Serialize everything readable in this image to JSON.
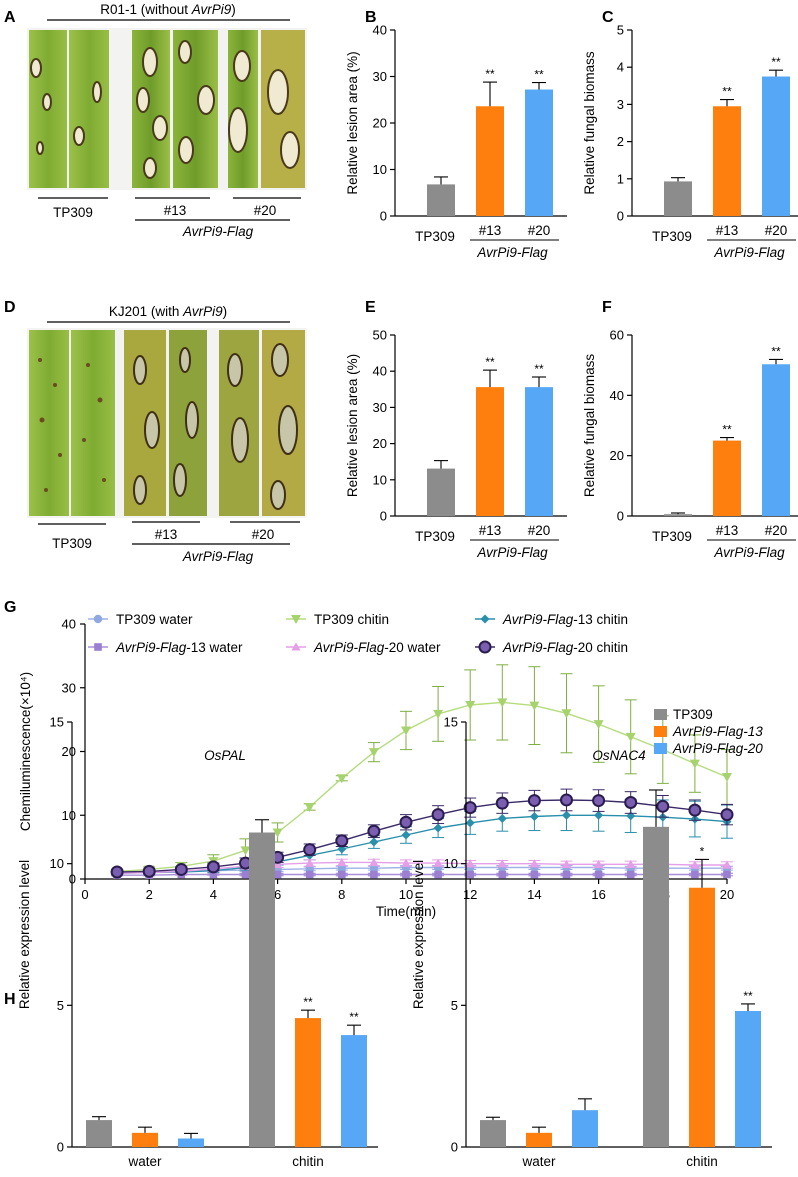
{
  "panels": {
    "A": {
      "letter": "A",
      "strain_pre": "R01-1 (without ",
      "strain_gene": "AvrPi9",
      "strain_post": ")",
      "tp_label": "TP309",
      "line13_label": "#13",
      "line20_label": "#20",
      "group_label": "AvrPi9-Flag"
    },
    "D": {
      "letter": "D",
      "strain_pre": "KJ201 (with ",
      "strain_gene": "AvrPi9",
      "strain_post": ")",
      "tp_label": "TP309",
      "line13_label": "#13",
      "line20_label": "#20",
      "group_label": "AvrPi9-Flag"
    }
  },
  "colors": {
    "tp309": "#8c8c8c",
    "line13": "#ff7f0e",
    "line20": "#56a7f5",
    "tp_water": "#8fa9e0",
    "tp_chitin": "#a7d36e",
    "l13_chitin": "#2a8faa",
    "l13_water": "#9b7fd0",
    "l20_water": "#e59ee8",
    "l20_chitin": "#3b2a66",
    "chitin_err": "#7fae42"
  },
  "chart_data": [
    {
      "id": "B",
      "letter": "B",
      "type": "bar",
      "categories": [
        "TP309",
        "#13",
        "#20"
      ],
      "group_label": "AvrPi9-Flag",
      "values": [
        6.8,
        23.6,
        27.2
      ],
      "errors": [
        1.6,
        5.2,
        1.5
      ],
      "significance": [
        "",
        "**",
        "**"
      ],
      "ylabel": "Relative lesion area (%)",
      "ylim": [
        0,
        40
      ],
      "yticks": [
        0,
        10,
        20,
        30,
        40
      ]
    },
    {
      "id": "C",
      "letter": "C",
      "type": "bar",
      "categories": [
        "TP309",
        "#13",
        "#20"
      ],
      "group_label": "AvrPi9-Flag",
      "values": [
        0.93,
        2.95,
        3.75
      ],
      "errors": [
        0.1,
        0.18,
        0.17
      ],
      "significance": [
        "",
        "**",
        "**"
      ],
      "ylabel": "Relative fungal biomass",
      "ylim": [
        0,
        5
      ],
      "yticks": [
        0,
        1,
        2,
        3,
        4,
        5
      ]
    },
    {
      "id": "E",
      "letter": "E",
      "type": "bar",
      "categories": [
        "TP309",
        "#13",
        "#20"
      ],
      "group_label": "AvrPi9-Flag",
      "values": [
        13.1,
        35.6,
        35.6
      ],
      "errors": [
        2.2,
        4.7,
        2.8
      ],
      "significance": [
        "",
        "**",
        "**"
      ],
      "ylabel": "Relative lesion area (%)",
      "ylim": [
        0,
        50
      ],
      "yticks": [
        0,
        10,
        20,
        30,
        40,
        50
      ]
    },
    {
      "id": "F",
      "letter": "F",
      "type": "bar",
      "categories": [
        "TP309",
        "#13",
        "#20"
      ],
      "group_label": "AvrPi9-Flag",
      "values": [
        0.6,
        25.0,
        50.3
      ],
      "errors": [
        0.4,
        1.0,
        1.6
      ],
      "significance": [
        "",
        "**",
        "**"
      ],
      "ylabel": "Relative fungal biomass",
      "ylim": [
        0,
        60
      ],
      "yticks": [
        0,
        20,
        40,
        60
      ]
    },
    {
      "id": "G",
      "letter": "G",
      "type": "line",
      "xlabel": "Time(min)",
      "ylabel": "Chemiluminescence(×10⁴)",
      "xlim": [
        0,
        20
      ],
      "ylim": [
        0,
        40
      ],
      "xticks": [
        0,
        2,
        4,
        6,
        8,
        10,
        12,
        14,
        16,
        18,
        20
      ],
      "yticks": [
        0,
        10,
        20,
        30,
        40
      ],
      "x": [
        1,
        2,
        3,
        4,
        5,
        6,
        7,
        8,
        9,
        10,
        11,
        12,
        13,
        14,
        15,
        16,
        17,
        18,
        19,
        20
      ],
      "series": [
        {
          "key": "tp_water",
          "name_plain": "TP309 water",
          "name_it": "",
          "name_rest": "",
          "marker": "circle",
          "line_color": "#9db2e6",
          "err_color": "#8fa9e0",
          "values": [
            1.0,
            1.1,
            1.2,
            1.3,
            1.4,
            1.5,
            1.6,
            1.7,
            1.7,
            1.8,
            1.8,
            1.8,
            1.8,
            1.8,
            1.8,
            1.8,
            1.7,
            1.7,
            1.7,
            1.7
          ],
          "errors": [
            0.1,
            0.1,
            0.2,
            0.2,
            0.2,
            0.3,
            0.3,
            0.3,
            0.3,
            0.3,
            0.3,
            0.3,
            0.3,
            0.3,
            0.3,
            0.3,
            0.3,
            0.3,
            0.3,
            0.3
          ]
        },
        {
          "key": "tp_chitin",
          "name_plain": "TP309 chitin",
          "name_it": "",
          "name_rest": "",
          "marker": "triangle-down",
          "line_color": "#b5dc7e",
          "err_color": "#7fae42",
          "values": [
            1.2,
            1.5,
            2.0,
            2.8,
            4.5,
            7.3,
            11.3,
            15.8,
            19.9,
            23.3,
            25.9,
            27.3,
            27.7,
            27.2,
            26.0,
            24.3,
            22.3,
            20.3,
            18.1,
            16.0
          ],
          "errors": [
            0.3,
            0.4,
            0.6,
            1.0,
            1.8,
            1.5,
            0.5,
            0.4,
            1.5,
            3.0,
            4.3,
            5.5,
            5.9,
            6.1,
            6.2,
            6.0,
            5.8,
            5.3,
            4.5,
            4.3
          ]
        },
        {
          "key": "l13_chitin",
          "name_plain": "",
          "name_it": "AvrPi9-Flag",
          "name_rest": "-13 chitin",
          "marker": "diamond",
          "line_color": "#2a8faa",
          "err_color": "#2a8faa",
          "values": [
            0.9,
            1.0,
            1.1,
            1.3,
            1.8,
            2.7,
            3.7,
            4.7,
            5.8,
            6.9,
            8.0,
            8.8,
            9.5,
            9.8,
            10.0,
            10.0,
            9.9,
            9.7,
            9.4,
            9.0
          ],
          "errors": [
            0.1,
            0.1,
            0.2,
            0.3,
            0.4,
            0.5,
            0.7,
            0.9,
            1.0,
            1.3,
            1.5,
            1.8,
            2.0,
            2.2,
            2.4,
            2.5,
            2.6,
            2.7,
            2.8,
            2.6
          ]
        },
        {
          "key": "l13_water",
          "name_plain": "",
          "name_it": "AvrPi9-Flag",
          "name_rest": "-13 water",
          "marker": "square",
          "line_color": "#a98fd8",
          "err_color": "#9b7fd0",
          "values": [
            0.6,
            0.6,
            0.7,
            0.7,
            0.7,
            0.7,
            0.7,
            0.7,
            0.7,
            0.7,
            0.7,
            0.7,
            0.7,
            0.7,
            0.7,
            0.7,
            0.7,
            0.7,
            0.7,
            0.7
          ],
          "errors": [
            0.1,
            0.1,
            0.1,
            0.1,
            0.2,
            0.2,
            0.2,
            0.2,
            0.2,
            0.2,
            0.2,
            0.2,
            0.2,
            0.2,
            0.2,
            0.2,
            0.2,
            0.2,
            0.2,
            0.2
          ]
        },
        {
          "key": "l20_water",
          "name_plain": "",
          "name_it": "AvrPi9-Flag",
          "name_rest": "-20 water",
          "marker": "triangle-up",
          "line_color": "#e59ee8",
          "err_color": "#e59ee8",
          "values": [
            0.9,
            1.0,
            1.2,
            1.6,
            2.0,
            2.3,
            2.5,
            2.6,
            2.6,
            2.5,
            2.5,
            2.4,
            2.4,
            2.4,
            2.3,
            2.3,
            2.3,
            2.3,
            2.2,
            2.2
          ],
          "errors": [
            0.1,
            0.2,
            0.3,
            0.4,
            0.4,
            0.5,
            0.5,
            0.5,
            0.5,
            0.5,
            0.5,
            0.5,
            0.5,
            0.5,
            0.5,
            0.5,
            0.5,
            0.5,
            0.5,
            0.5
          ]
        },
        {
          "key": "l20_chitin",
          "name_plain": "",
          "name_it": "AvrPi9-Flag",
          "name_rest": "-20 chitin",
          "marker": "big-circle",
          "line_color": "#3b2a66",
          "err_color": "#3b2a66",
          "values": [
            1.1,
            1.2,
            1.5,
            1.9,
            2.5,
            3.4,
            4.6,
            6.0,
            7.5,
            8.9,
            10.1,
            11.2,
            11.9,
            12.3,
            12.4,
            12.3,
            12.0,
            11.4,
            10.8,
            10.1
          ],
          "errors": [
            0.2,
            0.3,
            0.4,
            0.6,
            0.8,
            0.8,
            0.9,
            0.9,
            1.0,
            1.2,
            1.4,
            1.5,
            1.6,
            1.6,
            1.7,
            1.7,
            1.7,
            1.7,
            1.6,
            1.6
          ]
        }
      ]
    },
    {
      "id": "H1",
      "letter": "H",
      "type": "bar",
      "title": "OsPAL",
      "ylabel": "Relative expression level",
      "categories": [
        "water",
        "chitin"
      ],
      "ylim": [
        0,
        15
      ],
      "yticks": [
        0,
        5,
        10,
        15
      ],
      "series": [
        {
          "name": "TP309",
          "values": [
            0.95,
            11.1
          ],
          "errors": [
            0.12,
            0.45
          ],
          "significance": [
            "",
            ""
          ]
        },
        {
          "name": "AvrPi9-Flag-13",
          "values": [
            0.5,
            4.55
          ],
          "errors": [
            0.2,
            0.28
          ],
          "significance": [
            "",
            "**"
          ]
        },
        {
          "name": "AvrPi9-Flag-20",
          "values": [
            0.3,
            3.95
          ],
          "errors": [
            0.18,
            0.35
          ],
          "significance": [
            "",
            "**"
          ]
        }
      ]
    },
    {
      "id": "H2",
      "letter": "",
      "type": "bar",
      "title": "OsNAC4",
      "ylabel": "Relative expression level",
      "categories": [
        "water",
        "chitin"
      ],
      "ylim": [
        0,
        15
      ],
      "yticks": [
        0,
        5,
        10,
        15
      ],
      "legend_position": "top-right",
      "series": [
        {
          "name": "TP309",
          "values": [
            0.95,
            11.3
          ],
          "errors": [
            0.1,
            1.3
          ],
          "significance": [
            "",
            ""
          ]
        },
        {
          "name": "AvrPi9-Flag-13",
          "values": [
            0.5,
            9.15
          ],
          "errors": [
            0.2,
            1.0
          ],
          "significance": [
            "",
            "*"
          ]
        },
        {
          "name": "AvrPi9-Flag-20",
          "values": [
            1.3,
            4.8
          ],
          "errors": [
            0.4,
            0.25
          ],
          "significance": [
            "",
            "**"
          ]
        }
      ]
    }
  ]
}
